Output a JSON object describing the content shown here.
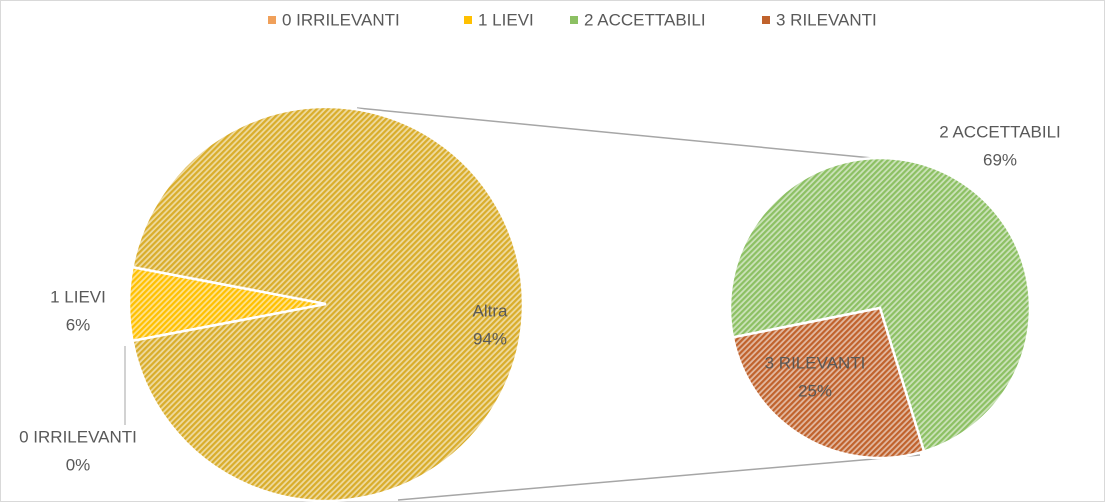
{
  "chart_data": {
    "type": "pie",
    "categories": [
      "0 IRRILEVANTI",
      "1 LIEVI",
      "2 ACCETTABILI",
      "3 RILEVANTI"
    ],
    "values": [
      0,
      6,
      69,
      25
    ],
    "value_labels": [
      "0%",
      "6%",
      "69%",
      "25%"
    ],
    "colors": [
      "#f0a05a",
      "#ffc000",
      "#8cc063",
      "#c0622c"
    ],
    "second_plot": [
      2,
      3
    ],
    "other": {
      "label": "Altra",
      "value": 94,
      "value_label": "94%",
      "color": "#d9ad2b"
    },
    "legend": "top"
  }
}
